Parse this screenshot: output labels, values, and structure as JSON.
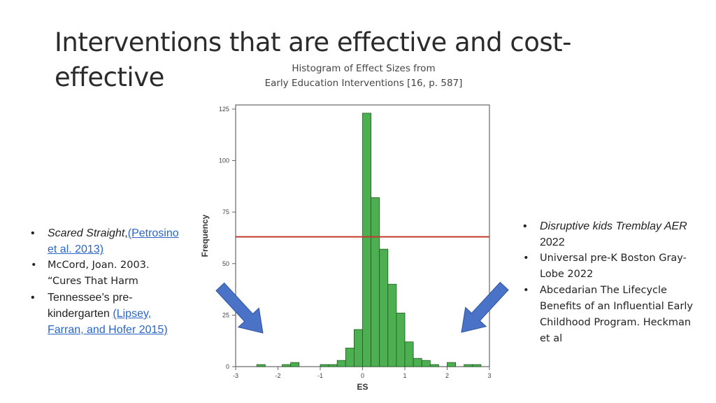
{
  "title": "Interventions that are effective and cost-effective",
  "title_line1": "Interventions that are effective and cost-",
  "title_line2": "effective",
  "chart_caption": {
    "line1": "Histogram of Effect Sizes from",
    "line2": "Early Education Interventions [16, p. 587]"
  },
  "left_list": [
    {
      "italic": "Scared Straight",
      "sep": ",",
      "link": "(Petrosino et al. 2013)"
    },
    {
      "text": "McCord, Joan. 2003. “Cures That Harm"
    },
    {
      "text": "Tennessee’s pre-kindergarten ",
      "link": "(Lipsey, Farran, and Hofer 2015)"
    }
  ],
  "right_list": [
    {
      "italic": "Disruptive kids Tremblay AER",
      "text": " 2022"
    },
    {
      "text": "Universal pre-K Boston Gray-Lobe 2022"
    },
    {
      "text": "Abcedarian The Lifecycle Benefits of an Influential Early Childhood Program. Heckman et al"
    }
  ],
  "colors": {
    "bar_fill": "#4cb050",
    "bar_stroke": "#1e5a22",
    "reference_line": "#c0392b",
    "arrow": "#4a73c8"
  },
  "chart_data": {
    "type": "bar",
    "title": "Histogram of Effect Sizes from Early Education Interventions [16, p. 587]",
    "xlabel": "ES",
    "ylabel": "Frequency",
    "xlim": [
      -3,
      3
    ],
    "ylim": [
      0,
      130
    ],
    "x_ticks": [
      -3,
      -2,
      -1,
      0,
      1,
      2,
      3
    ],
    "y_ticks": [
      0,
      25,
      50,
      75,
      100,
      125
    ],
    "bin_width": 0.2,
    "bins": [
      {
        "x": -2.4,
        "count": 1
      },
      {
        "x": -1.8,
        "count": 1
      },
      {
        "x": -1.6,
        "count": 2
      },
      {
        "x": -0.9,
        "count": 1
      },
      {
        "x": -0.7,
        "count": 1
      },
      {
        "x": -0.5,
        "count": 3
      },
      {
        "x": -0.3,
        "count": 9
      },
      {
        "x": -0.1,
        "count": 18
      },
      {
        "x": 0.1,
        "count": 123
      },
      {
        "x": 0.3,
        "count": 82
      },
      {
        "x": 0.5,
        "count": 57
      },
      {
        "x": 0.7,
        "count": 40
      },
      {
        "x": 0.9,
        "count": 26
      },
      {
        "x": 1.1,
        "count": 12
      },
      {
        "x": 1.3,
        "count": 4
      },
      {
        "x": 1.5,
        "count": 3
      },
      {
        "x": 1.7,
        "count": 1
      },
      {
        "x": 2.1,
        "count": 2
      },
      {
        "x": 2.5,
        "count": 1
      },
      {
        "x": 2.7,
        "count": 1
      }
    ],
    "reference_line_y": 63
  }
}
